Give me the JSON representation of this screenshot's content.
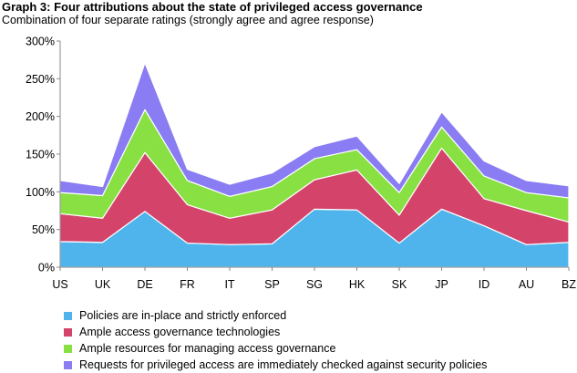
{
  "header": {
    "title": "Graph 3: Four attributions about the state of privileged access governance",
    "subtitle": "Combination of four separate ratings (strongly agree and agree response)"
  },
  "chart_data": {
    "type": "area",
    "stacked": true,
    "categories": [
      "US",
      "UK",
      "DE",
      "FR",
      "IT",
      "SP",
      "SG",
      "HK",
      "SK",
      "JP",
      "ID",
      "AU",
      "BZ"
    ],
    "y_ticks": [
      "0%",
      "50%",
      "100%",
      "150%",
      "200%",
      "250%",
      "300%"
    ],
    "ylim": [
      0,
      300
    ],
    "grid": false,
    "legend_position": "bottom",
    "series": [
      {
        "name": "Policies are in-place and strictly enforced",
        "color": "#4fb4eb",
        "values": [
          34,
          33,
          74,
          32,
          30,
          31,
          77,
          76,
          32,
          77,
          55,
          30,
          33
        ]
      },
      {
        "name": "Ample access governance technologies",
        "color": "#d4436a",
        "values": [
          37,
          32,
          78,
          51,
          35,
          45,
          39,
          53,
          37,
          81,
          36,
          45,
          27
        ]
      },
      {
        "name": "Ample resources for managing access governance",
        "color": "#88e043",
        "values": [
          28,
          30,
          57,
          32,
          29,
          31,
          28,
          27,
          30,
          28,
          30,
          24,
          32
        ]
      },
      {
        "name": "Requests for privileged access are immediately checked against security policies",
        "color": "#8a7cf2",
        "values": [
          16,
          12,
          62,
          15,
          16,
          18,
          16,
          18,
          12,
          20,
          20,
          16,
          16
        ]
      }
    ]
  }
}
